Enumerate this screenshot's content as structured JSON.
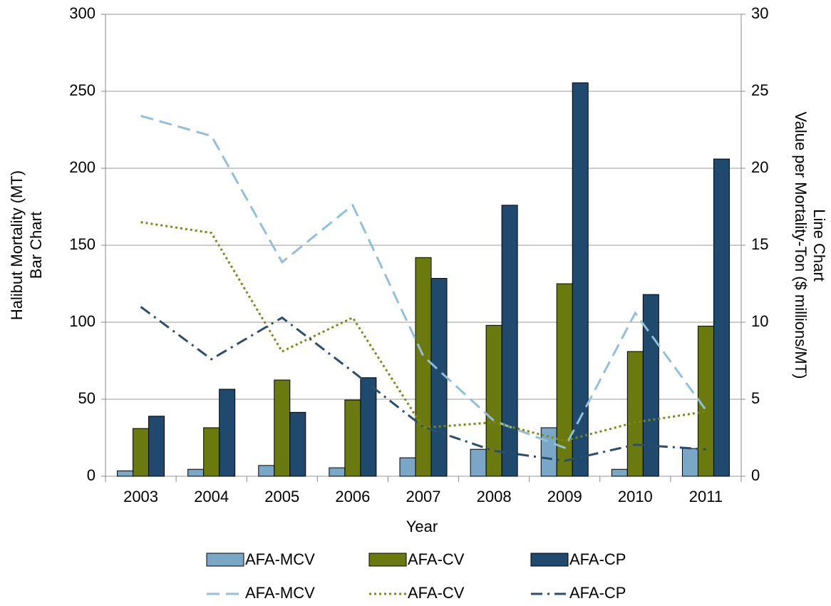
{
  "chart_data": {
    "type": "bar",
    "categories": [
      "2003",
      "2004",
      "2005",
      "2006",
      "2007",
      "2008",
      "2009",
      "2010",
      "2011"
    ],
    "x_label": "Year",
    "y_label": [
      "Halibut Mortality (MT)",
      "Bar Chart"
    ],
    "y2_label": [
      "Value per Mortality-Ton ($ millions/MT)",
      "Line Chart"
    ],
    "ylim": [
      0,
      300
    ],
    "yticks": [
      0,
      50,
      100,
      150,
      200,
      250,
      300
    ],
    "y2lim": [
      0,
      30
    ],
    "y2ticks": [
      0,
      5,
      10,
      15,
      20,
      25,
      30
    ],
    "grid": true,
    "series": [
      {
        "name": "AFA-MCV",
        "type": "bar",
        "color": "#7ba7c7",
        "values": [
          3.5,
          4.5,
          7,
          5.5,
          12,
          17.5,
          31.5,
          4.5,
          18
        ]
      },
      {
        "name": "AFA-CV",
        "type": "bar",
        "color": "#6b7a0f",
        "values": [
          31,
          31.5,
          62.5,
          49.5,
          142,
          98,
          125,
          81,
          97.5
        ]
      },
      {
        "name": "AFA-CP",
        "type": "bar",
        "color": "#1f4a6e",
        "values": [
          39,
          56.5,
          41.5,
          64,
          128.5,
          176,
          255.5,
          118,
          206
        ]
      },
      {
        "name": "AFA-MCV",
        "type": "line",
        "axis": "y2",
        "dash": "dashed",
        "color": "#92bfdc",
        "values": [
          23.4,
          22.1,
          13.9,
          17.6,
          7.8,
          3.6,
          1.85,
          10.6,
          4.3
        ]
      },
      {
        "name": "AFA-CV",
        "type": "line",
        "axis": "y2",
        "dash": "dotted",
        "color": "#7a8a12",
        "values": [
          16.5,
          15.8,
          8.1,
          10.3,
          3.15,
          3.5,
          2.3,
          3.5,
          4.2
        ]
      },
      {
        "name": "AFA-CP",
        "type": "line",
        "axis": "y2",
        "dash": "dashdot",
        "color": "#2a4f6e",
        "values": [
          11.0,
          7.6,
          10.3,
          6.8,
          3.2,
          1.65,
          1.0,
          2.05,
          1.75
        ]
      }
    ]
  }
}
